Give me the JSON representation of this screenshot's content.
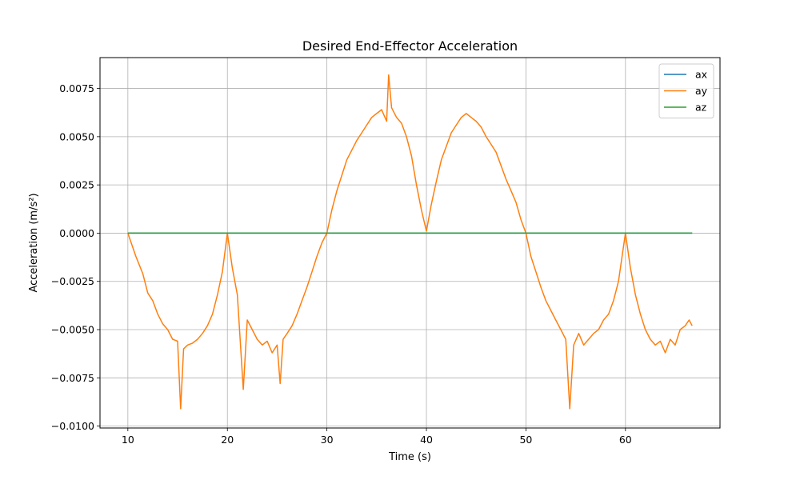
{
  "chart_data": {
    "type": "line",
    "title": "Desired End-Effector Acceleration",
    "xlabel": "Time (s)",
    "ylabel": "Acceleration (m/s²)",
    "xlim": [
      7.2,
      69.5
    ],
    "ylim": [
      -0.0101,
      0.0091
    ],
    "xticks": [
      10,
      20,
      30,
      40,
      50,
      60
    ],
    "xtick_labels": [
      "10",
      "20",
      "30",
      "40",
      "50",
      "60"
    ],
    "yticks": [
      -0.01,
      -0.0075,
      -0.005,
      -0.0025,
      0,
      0.0025,
      0.005,
      0.0075
    ],
    "ytick_labels": [
      "−0.0100",
      "−0.0075",
      "−0.0050",
      "−0.0025",
      "0.0000",
      "0.0025",
      "0.0050",
      "0.0075"
    ],
    "grid": true,
    "legend_position": "upper-right",
    "series": [
      {
        "name": "ax",
        "color": "#1f77b4",
        "x": [
          10,
          66.7
        ],
        "y": [
          0,
          0
        ]
      },
      {
        "name": "ay",
        "color": "#ff7f0e",
        "x": [
          10.0,
          10.8,
          11.5,
          12.0,
          12.5,
          13.0,
          13.5,
          14.0,
          14.5,
          15.0,
          15.3,
          15.6,
          16.0,
          16.5,
          17.0,
          17.5,
          18.0,
          18.5,
          19.0,
          19.5,
          20.0,
          20.5,
          21.0,
          21.6,
          22.0,
          22.5,
          23.0,
          23.5,
          24.0,
          24.5,
          25.0,
          25.3,
          25.6,
          26.0,
          26.5,
          27.0,
          27.5,
          28.0,
          28.5,
          29.0,
          29.5,
          30.0,
          30.5,
          31.0,
          31.5,
          32.0,
          32.5,
          33.0,
          33.5,
          34.0,
          34.5,
          35.0,
          35.5,
          36.0,
          36.2,
          36.5,
          37.0,
          37.5,
          38.0,
          38.5,
          39.0,
          39.5,
          40.0,
          40.5,
          41.0,
          41.5,
          42.0,
          42.5,
          43.0,
          43.5,
          44.0,
          44.5,
          45.0,
          45.5,
          46.0,
          46.5,
          47.0,
          47.5,
          48.0,
          48.5,
          49.0,
          49.5,
          50.0,
          50.5,
          51.0,
          51.5,
          52.0,
          52.5,
          53.0,
          53.5,
          54.0,
          54.4,
          54.8,
          55.3,
          55.8,
          56.3,
          56.8,
          57.3,
          57.8,
          58.3,
          58.8,
          59.3,
          60.0,
          60.5,
          61.0,
          61.5,
          62.0,
          62.5,
          63.0,
          63.5,
          64.0,
          64.5,
          65.0,
          65.5,
          66.0,
          66.4,
          66.7
        ],
        "y": [
          0.0,
          -0.0012,
          -0.0021,
          -0.0031,
          -0.0035,
          -0.0042,
          -0.0047,
          -0.005,
          -0.0055,
          -0.0056,
          -0.0091,
          -0.006,
          -0.0058,
          -0.0057,
          -0.0055,
          -0.0052,
          -0.0048,
          -0.0042,
          -0.0032,
          -0.002,
          0.0,
          -0.0018,
          -0.0032,
          -0.0081,
          -0.0045,
          -0.005,
          -0.0055,
          -0.0058,
          -0.0056,
          -0.0062,
          -0.0058,
          -0.0078,
          -0.0055,
          -0.0052,
          -0.0048,
          -0.0042,
          -0.0035,
          -0.0028,
          -0.002,
          -0.0012,
          -0.0005,
          0.0,
          0.0012,
          0.0022,
          0.003,
          0.0038,
          0.0043,
          0.0048,
          0.0052,
          0.0056,
          0.006,
          0.0062,
          0.0064,
          0.0058,
          0.0082,
          0.0065,
          0.006,
          0.0057,
          0.005,
          0.004,
          0.0025,
          0.0012,
          0.0001,
          0.0015,
          0.0027,
          0.0038,
          0.0045,
          0.0052,
          0.0056,
          0.006,
          0.0062,
          0.006,
          0.0058,
          0.0055,
          0.005,
          0.0046,
          0.0042,
          0.0035,
          0.0028,
          0.0022,
          0.0016,
          0.0007,
          0.0,
          -0.0012,
          -0.002,
          -0.0028,
          -0.0035,
          -0.004,
          -0.0045,
          -0.005,
          -0.0055,
          -0.0091,
          -0.0058,
          -0.0052,
          -0.0058,
          -0.0055,
          -0.0052,
          -0.005,
          -0.0045,
          -0.0042,
          -0.0035,
          -0.0025,
          0.0,
          -0.0018,
          -0.0032,
          -0.0042,
          -0.005,
          -0.0055,
          -0.0058,
          -0.0056,
          -0.0062,
          -0.0055,
          -0.0058,
          -0.005,
          -0.0048,
          -0.0045,
          -0.0048
        ]
      },
      {
        "name": "az",
        "color": "#2ca02c",
        "x": [
          10,
          66.7
        ],
        "y": [
          0,
          0
        ]
      }
    ]
  }
}
